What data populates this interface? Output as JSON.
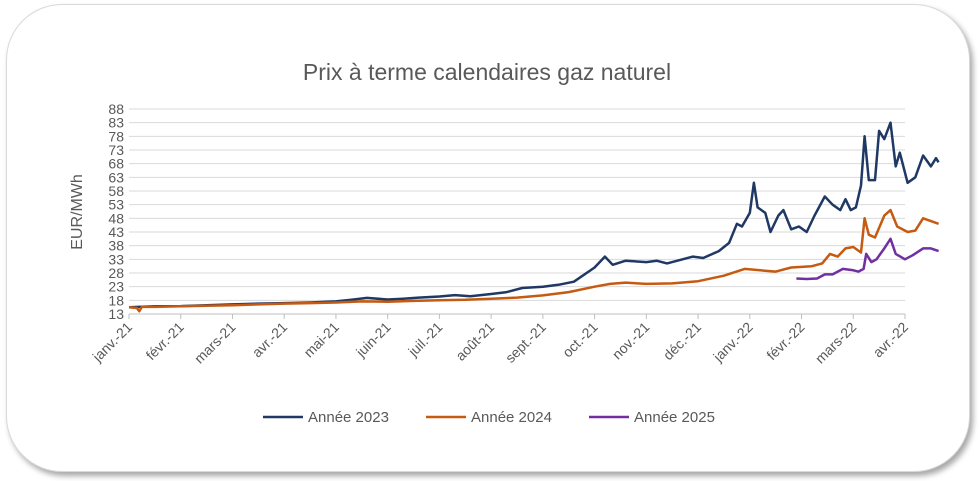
{
  "chart_data": {
    "type": "line",
    "title": "Prix à terme calendaires gaz naturel",
    "ylabel": "EUR/MWh",
    "xlabel": "",
    "ylim": [
      13,
      88
    ],
    "yticks": [
      "88",
      "83",
      "78",
      "73",
      "68",
      "63",
      "58",
      "53",
      "48",
      "43",
      "38",
      "33",
      "28",
      "23",
      "18",
      "13"
    ],
    "xticks": [
      "janv.-21",
      "févr.-21",
      "mars-21",
      "avr.-21",
      "mai-21",
      "juin-21",
      "juil.-21",
      "août-21",
      "sept.-21",
      "oct.-21",
      "nov.-21",
      "déc.-21",
      "janv.-22",
      "févr.-22",
      "mars-22",
      "avr.-22"
    ],
    "grid": true,
    "legend_position": "bottom",
    "series": [
      {
        "name": "Année 2023",
        "color": "#1f3864",
        "points": [
          [
            0,
            15.5
          ],
          [
            0.5,
            15.8
          ],
          [
            1,
            15.9
          ],
          [
            1.5,
            16.2
          ],
          [
            2,
            16.5
          ],
          [
            2.5,
            16.8
          ],
          [
            3,
            17
          ],
          [
            3.5,
            17.2
          ],
          [
            4,
            17.6
          ],
          [
            4.3,
            18.2
          ],
          [
            4.6,
            18.9
          ],
          [
            5,
            18.3
          ],
          [
            5.3,
            18.6
          ],
          [
            5.6,
            19.0
          ],
          [
            6,
            19.4
          ],
          [
            6.3,
            19.9
          ],
          [
            6.6,
            19.5
          ],
          [
            7,
            20.3
          ],
          [
            7.3,
            21.0
          ],
          [
            7.6,
            22.5
          ],
          [
            8,
            23.0
          ],
          [
            8.3,
            23.7
          ],
          [
            8.6,
            24.8
          ],
          [
            9,
            30.0
          ],
          [
            9.2,
            34.0
          ],
          [
            9.35,
            31.0
          ],
          [
            9.6,
            32.5
          ],
          [
            10,
            32.0
          ],
          [
            10.2,
            32.5
          ],
          [
            10.4,
            31.5
          ],
          [
            10.6,
            32.5
          ],
          [
            10.9,
            34.0
          ],
          [
            11.1,
            33.5
          ],
          [
            11.4,
            36.0
          ],
          [
            11.6,
            39.0
          ],
          [
            11.75,
            46.0
          ],
          [
            11.85,
            45.0
          ],
          [
            12,
            50.0
          ],
          [
            12.08,
            61.0
          ],
          [
            12.15,
            52.0
          ],
          [
            12.3,
            50.0
          ],
          [
            12.4,
            43.0
          ],
          [
            12.55,
            49.0
          ],
          [
            12.65,
            51.0
          ],
          [
            12.8,
            44.0
          ],
          [
            12.95,
            45.0
          ],
          [
            13.1,
            43.0
          ],
          [
            13.25,
            49.0
          ],
          [
            13.45,
            56.0
          ],
          [
            13.6,
            53.0
          ],
          [
            13.75,
            51.0
          ],
          [
            13.85,
            55.0
          ],
          [
            13.95,
            51.0
          ],
          [
            14.05,
            52.0
          ],
          [
            14.15,
            60.0
          ],
          [
            14.22,
            78.0
          ],
          [
            14.3,
            62.0
          ],
          [
            14.42,
            62.0
          ],
          [
            14.5,
            80.0
          ],
          [
            14.6,
            77.0
          ],
          [
            14.72,
            83.0
          ],
          [
            14.82,
            67.0
          ],
          [
            14.9,
            72.0
          ],
          [
            15.05,
            61.0
          ],
          [
            15.2,
            63.0
          ],
          [
            15.35,
            71.0
          ],
          [
            15.5,
            67.0
          ],
          [
            15.6,
            70.0
          ],
          [
            15.65,
            68.5
          ]
        ]
      },
      {
        "name": "Année 2024",
        "color": "#c55a11",
        "points": [
          [
            0,
            15.5
          ],
          [
            0.15,
            15.2
          ],
          [
            0.2,
            14.0
          ],
          [
            0.25,
            15.6
          ],
          [
            0.5,
            15.6
          ],
          [
            1,
            15.8
          ],
          [
            1.5,
            16.0
          ],
          [
            2,
            16.2
          ],
          [
            2.5,
            16.5
          ],
          [
            3,
            16.8
          ],
          [
            3.5,
            17.0
          ],
          [
            4,
            17.2
          ],
          [
            4.5,
            17.6
          ],
          [
            5,
            17.5
          ],
          [
            5.5,
            17.8
          ],
          [
            6,
            18.0
          ],
          [
            6.5,
            18.2
          ],
          [
            7,
            18.6
          ],
          [
            7.5,
            19.0
          ],
          [
            8,
            19.8
          ],
          [
            8.5,
            21.0
          ],
          [
            9,
            23.0
          ],
          [
            9.3,
            24.0
          ],
          [
            9.6,
            24.5
          ],
          [
            10,
            24.0
          ],
          [
            10.5,
            24.2
          ],
          [
            11,
            25.0
          ],
          [
            11.5,
            27.0
          ],
          [
            11.9,
            29.5
          ],
          [
            12.2,
            29.0
          ],
          [
            12.5,
            28.5
          ],
          [
            12.8,
            30.0
          ],
          [
            13.2,
            30.5
          ],
          [
            13.4,
            31.5
          ],
          [
            13.55,
            35.0
          ],
          [
            13.7,
            34.0
          ],
          [
            13.85,
            37.0
          ],
          [
            14.0,
            37.5
          ],
          [
            14.15,
            35.5
          ],
          [
            14.22,
            48.0
          ],
          [
            14.3,
            42.0
          ],
          [
            14.42,
            41.0
          ],
          [
            14.6,
            49.0
          ],
          [
            14.72,
            51.0
          ],
          [
            14.85,
            45.0
          ],
          [
            15.05,
            43.0
          ],
          [
            15.2,
            43.5
          ],
          [
            15.35,
            48.0
          ],
          [
            15.5,
            47.0
          ],
          [
            15.65,
            46.0
          ]
        ]
      },
      {
        "name": "Année 2025",
        "color": "#7030a0",
        "points": [
          [
            12.9,
            26.0
          ],
          [
            13.1,
            25.8
          ],
          [
            13.3,
            26.0
          ],
          [
            13.45,
            27.5
          ],
          [
            13.6,
            27.5
          ],
          [
            13.8,
            29.5
          ],
          [
            14.0,
            29.0
          ],
          [
            14.1,
            28.5
          ],
          [
            14.2,
            29.5
          ],
          [
            14.25,
            35.0
          ],
          [
            14.35,
            32.0
          ],
          [
            14.45,
            33.0
          ],
          [
            14.6,
            37.0
          ],
          [
            14.72,
            40.5
          ],
          [
            14.82,
            35.0
          ],
          [
            15.0,
            33.0
          ],
          [
            15.15,
            34.5
          ],
          [
            15.35,
            37.0
          ],
          [
            15.5,
            37.0
          ],
          [
            15.65,
            36.0
          ]
        ]
      }
    ]
  }
}
